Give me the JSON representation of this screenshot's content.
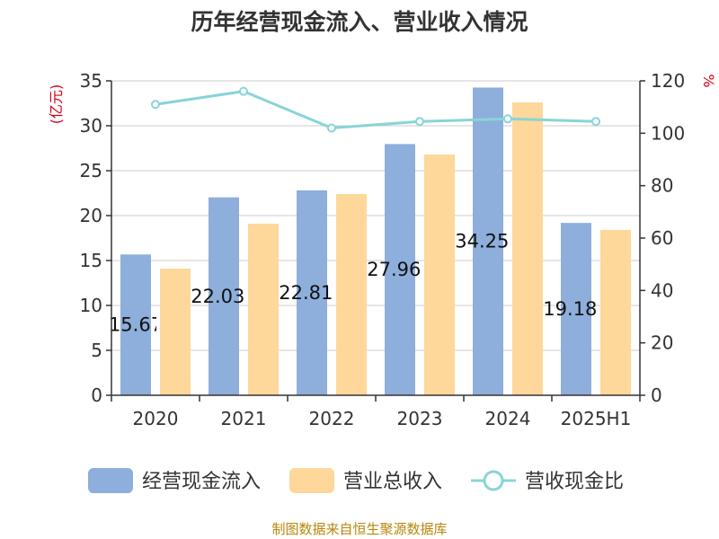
{
  "chart_data": {
    "type": "bar",
    "title": "历年经营现金流入、营业收入情况",
    "categories": [
      "2020",
      "2021",
      "2022",
      "2023",
      "2024",
      "2025H1"
    ],
    "left_axis": {
      "unit": "(亿元)",
      "ylim": [
        0,
        35
      ],
      "ticks": [
        0,
        5,
        10,
        15,
        20,
        25,
        30,
        35
      ]
    },
    "right_axis": {
      "unit": "%",
      "ylim": [
        0,
        120
      ],
      "ticks": [
        0,
        20,
        40,
        60,
        80,
        100,
        120
      ]
    },
    "series": [
      {
        "name": "经营现金流入",
        "type": "bar",
        "axis": "left",
        "color": "#8eaedb",
        "values": [
          15.671,
          22.032,
          22.813,
          27.964,
          34.255,
          19.185
        ],
        "labels": [
          "15.67",
          "22.032",
          "22.813",
          "27.964",
          "34.255",
          "19.185"
        ]
      },
      {
        "name": "营业总收入",
        "type": "bar",
        "axis": "left",
        "color": "#fdd89a",
        "values": [
          14.1,
          19.1,
          22.4,
          26.8,
          32.6,
          18.4
        ]
      },
      {
        "name": "营收现金比",
        "type": "line",
        "axis": "right",
        "color": "#88d4d8",
        "values": [
          111,
          116,
          102,
          104.5,
          105.5,
          104.5
        ]
      }
    ],
    "grid": true,
    "legend_position": "bottom"
  },
  "source_text": "制图数据来自恒生聚源数据库"
}
